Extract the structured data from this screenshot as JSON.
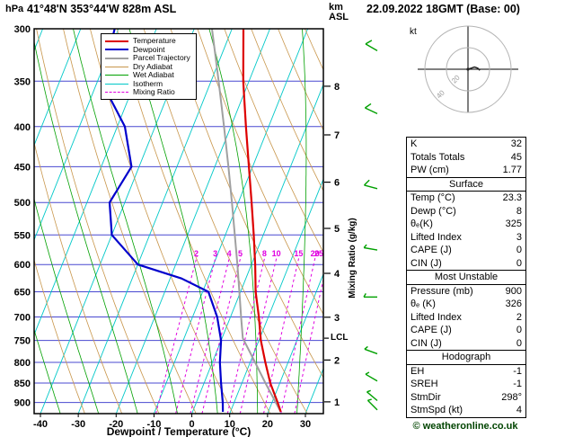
{
  "header": {
    "pressure_unit": "hPa",
    "title": "41°48'N 353°44'W 828m ASL",
    "datetime": "22.09.2022 18GMT (Base: 00)",
    "altitude_unit": "km\nASL"
  },
  "axes": {
    "bottom_label": "Dewpoint / Temperature (°C)",
    "right_label": "Mixing Ratio (g/kg)",
    "lcl_label": "LCL"
  },
  "legend": {
    "items": [
      {
        "label": "Temperature",
        "color": "#dd0000",
        "width": 2,
        "dash": false
      },
      {
        "label": "Dewpoint",
        "color": "#0000cc",
        "width": 2,
        "dash": false
      },
      {
        "label": "Parcel Trajectory",
        "color": "#a0a0a0",
        "width": 2,
        "dash": false
      },
      {
        "label": "Dry Adiabat",
        "color": "#c8964b",
        "width": 1,
        "dash": false
      },
      {
        "label": "Wet Adiabat",
        "color": "#00a000",
        "width": 1,
        "dash": false
      },
      {
        "label": "Isotherm",
        "color": "#00c8c8",
        "width": 1,
        "dash": false
      },
      {
        "label": "Mixing Ratio",
        "color": "#e000e0",
        "width": 1,
        "dash": true
      }
    ]
  },
  "hodograph": {
    "unit": "kt",
    "rings_kt": [
      20,
      40
    ],
    "ring_labels": [
      "20",
      "40"
    ],
    "trace_uv_kt": [
      [
        0,
        0
      ],
      [
        3,
        -1
      ],
      [
        6,
        -2
      ],
      [
        9,
        -1
      ],
      [
        11,
        1
      ]
    ]
  },
  "table": {
    "sections": [
      {
        "header": null,
        "rows": [
          [
            "K",
            "32"
          ],
          [
            "Totals Totals",
            "45"
          ],
          [
            "PW (cm)",
            "1.77"
          ]
        ]
      },
      {
        "header": "Surface",
        "rows": [
          [
            "Temp (°C)",
            "23.3"
          ],
          [
            "Dewp (°C)",
            "8"
          ],
          [
            "θₑ(K)",
            "325"
          ],
          [
            "Lifted Index",
            "3"
          ],
          [
            "CAPE (J)",
            "0"
          ],
          [
            "CIN (J)",
            "0"
          ]
        ]
      },
      {
        "header": "Most Unstable",
        "rows": [
          [
            "Pressure (mb)",
            "900"
          ],
          [
            "θₑ (K)",
            "326"
          ],
          [
            "Lifted Index",
            "2"
          ],
          [
            "CAPE (J)",
            "0"
          ],
          [
            "CIN (J)",
            "0"
          ]
        ]
      },
      {
        "header": "Hodograph",
        "rows": [
          [
            "EH",
            "-1"
          ],
          [
            "SREH",
            "-1"
          ],
          [
            "StmDir",
            "298°"
          ],
          [
            "StmSpd (kt)",
            "4"
          ]
        ]
      }
    ]
  },
  "copyright": "© weatheronline.co.uk",
  "style": {
    "isobar_color": "#4848d0",
    "isotherm_color": "#00c8c8",
    "dry_adiabat_color": "#c8964b",
    "wet_adiabat_color": "#00a000",
    "mixing_ratio_color": "#e000e0",
    "barb_color": "#00a000",
    "frame_color": "#000000",
    "copyright_color": "#004400"
  },
  "chart_data": {
    "type": "line",
    "subtype": "skew-t-log-p-sounding",
    "title": "41°48'N 353°44'W 828m ASL — 22.09.2022 18GMT (Base: 00)",
    "x_axis": {
      "label": "Dewpoint / Temperature (°C)",
      "ticks": [
        -40,
        -30,
        -20,
        -10,
        0,
        10,
        20,
        30
      ]
    },
    "y_axis": {
      "label": "hPa",
      "scale": "log",
      "range": [
        300,
        930
      ],
      "ticks": [
        300,
        350,
        400,
        450,
        500,
        550,
        600,
        650,
        700,
        750,
        800,
        850,
        900
      ]
    },
    "km_asl_ticks": [
      1,
      2,
      3,
      4,
      5,
      6,
      7,
      8
    ],
    "mixing_ratio_lines_g_per_kg": [
      2,
      3,
      4,
      5,
      8,
      10,
      15,
      20,
      25
    ],
    "lcl_pressure_hpa": 745,
    "series": [
      {
        "name": "Parcel Trajectory",
        "color": "#a0a0a0",
        "width": 2,
        "points_p_t": [
          [
            925,
            23.3
          ],
          [
            900,
            21.0
          ],
          [
            850,
            16.2
          ],
          [
            800,
            11.3
          ],
          [
            745,
            5.5
          ],
          [
            700,
            2.8
          ],
          [
            650,
            -0.3
          ],
          [
            600,
            -3.7
          ],
          [
            550,
            -7.5
          ],
          [
            500,
            -11.7
          ],
          [
            450,
            -16.4
          ],
          [
            400,
            -21.8
          ],
          [
            350,
            -28.0
          ],
          [
            300,
            -35.3
          ]
        ]
      },
      {
        "name": "Dewpoint",
        "color": "#0000cc",
        "width": 2.2,
        "points_p_t": [
          [
            925,
            8.0
          ],
          [
            900,
            7.0
          ],
          [
            850,
            4.5
          ],
          [
            800,
            2.0
          ],
          [
            750,
            0.0
          ],
          [
            700,
            -3.5
          ],
          [
            650,
            -8.5
          ],
          [
            625,
            -17.0
          ],
          [
            600,
            -30.0
          ],
          [
            550,
            -40.0
          ],
          [
            500,
            -44.0
          ],
          [
            450,
            -42.0
          ],
          [
            400,
            -48.0
          ],
          [
            350,
            -59.0
          ],
          [
            300,
            -61.0
          ]
        ]
      },
      {
        "name": "Temperature",
        "color": "#dd0000",
        "width": 2.2,
        "points_p_t": [
          [
            925,
            23.3
          ],
          [
            900,
            21.5
          ],
          [
            850,
            17.5
          ],
          [
            800,
            14.0
          ],
          [
            750,
            10.5
          ],
          [
            700,
            7.5
          ],
          [
            650,
            4.0
          ],
          [
            600,
            1.0
          ],
          [
            550,
            -2.5
          ],
          [
            500,
            -6.5
          ],
          [
            450,
            -11.0
          ],
          [
            400,
            -16.0
          ],
          [
            350,
            -21.5
          ],
          [
            300,
            -27.0
          ]
        ]
      }
    ],
    "wind_barbs_p_dir_kt": [
      [
        320,
        300,
        10
      ],
      [
        385,
        295,
        10
      ],
      [
        480,
        285,
        10
      ],
      [
        575,
        280,
        5
      ],
      [
        660,
        270,
        5
      ],
      [
        780,
        290,
        5
      ],
      [
        845,
        300,
        5
      ],
      [
        895,
        310,
        5
      ],
      [
        920,
        315,
        5
      ]
    ]
  }
}
